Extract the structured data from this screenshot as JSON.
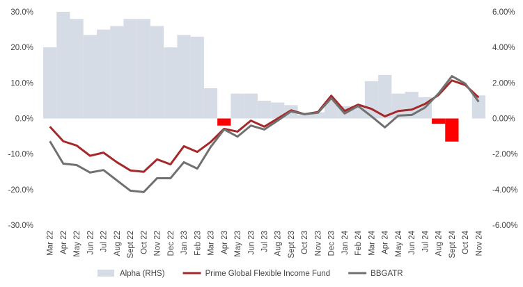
{
  "chart_data": {
    "type": "combo",
    "categories": [
      "Mar 22",
      "Apr 22",
      "May 22",
      "Jun 22",
      "Jul 22",
      "Aug 22",
      "Sept 22",
      "Oct 22",
      "Nov 22",
      "Dec 22",
      "Jan 23",
      "Feb 23",
      "Mar 23",
      "Apr 23",
      "May 23",
      "Jun 23",
      "Jul 23",
      "Aug 23",
      "Sept 23",
      "Oct 23",
      "Nov 23",
      "Dec 23",
      "Jan 24",
      "Feb 24",
      "Mar 24",
      "Apr 24",
      "May 24",
      "Jun 24",
      "Jul 24",
      "Aug 24",
      "Sept 24",
      "Oct 24",
      "Nov 24"
    ],
    "series": [
      {
        "name": "Alpha (RHS)",
        "type": "bar",
        "axis": "y2",
        "color": "#d6dce5",
        "negative_color": "#ff0000",
        "values": [
          4.0,
          6.0,
          5.6,
          4.7,
          5.0,
          5.2,
          5.6,
          5.6,
          5.2,
          4.0,
          4.7,
          4.6,
          1.7,
          -0.4,
          1.4,
          1.4,
          1.0,
          0.9,
          0.75,
          0.2,
          0.35,
          1.0,
          0.7,
          0.7,
          2.1,
          2.45,
          1.4,
          1.5,
          1.2,
          -0.3,
          -1.3,
          0.0,
          1.3
        ]
      },
      {
        "name": "Prime Global Flexible Income Fund",
        "type": "line",
        "color": "#a5282a",
        "values": [
          -2.3,
          -6.4,
          -7.6,
          -10.5,
          -9.6,
          -12.3,
          -14.6,
          -15.0,
          -11.5,
          -12.9,
          -7.8,
          -9.4,
          -6.6,
          -2.9,
          -3.7,
          -0.6,
          -2.3,
          0.0,
          2.3,
          1.2,
          1.8,
          6.4,
          2.1,
          3.9,
          2.7,
          0.6,
          2.1,
          2.5,
          4.1,
          6.6,
          10.7,
          9.4,
          5.9
        ]
      },
      {
        "name": "BBGATR",
        "type": "line",
        "color": "#707070",
        "values": [
          -6.4,
          -12.7,
          -13.1,
          -15.2,
          -14.5,
          -17.4,
          -20.3,
          -20.7,
          -16.8,
          -16.8,
          -12.3,
          -14.1,
          -8.0,
          -3.1,
          -5.1,
          -2.0,
          -3.1,
          -0.6,
          2.0,
          1.2,
          1.6,
          5.7,
          1.4,
          3.5,
          0.6,
          -2.5,
          0.8,
          1.0,
          3.1,
          7.0,
          11.9,
          9.8,
          4.7
        ]
      }
    ],
    "ylim": [
      -30,
      30
    ],
    "yticks": [
      {
        "value": -30,
        "label": "-30.0%"
      },
      {
        "value": -20,
        "label": "-20.0%"
      },
      {
        "value": -10,
        "label": "-10.0%"
      },
      {
        "value": 0,
        "label": "0.0%"
      },
      {
        "value": 10,
        "label": "10.0%"
      },
      {
        "value": 20,
        "label": "20.0%"
      },
      {
        "value": 30,
        "label": "30.0%"
      }
    ],
    "y2lim": [
      -6,
      6
    ],
    "y2ticks": [
      {
        "value": -6,
        "label": "-6.00%"
      },
      {
        "value": -4,
        "label": "-4.00%"
      },
      {
        "value": -2,
        "label": "-2.00%"
      },
      {
        "value": 0,
        "label": "0.00%"
      },
      {
        "value": 2,
        "label": "2.00%"
      },
      {
        "value": 4,
        "label": "4.00%"
      },
      {
        "value": 6,
        "label": "6.00%"
      }
    ],
    "legend": "bottom"
  }
}
